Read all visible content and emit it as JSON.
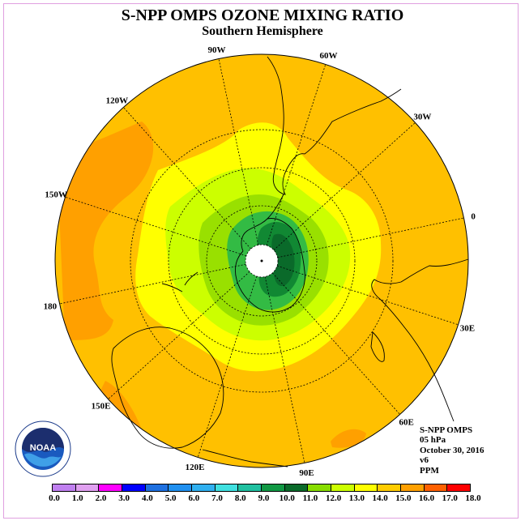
{
  "header": {
    "title": "S-NPP OMPS OZONE MIXING RATIO",
    "subtitle": "Southern Hemisphere"
  },
  "map": {
    "longitude_labels": [
      "90W",
      "60W",
      "30W",
      "0",
      "30E",
      "60E",
      "90E",
      "120E",
      "150E",
      "180",
      "150W",
      "120W"
    ],
    "colors": {
      "outer_orange": "#ffc000",
      "dark_orange": "#ffa000",
      "yellow": "#ffff00",
      "yellow_green": "#ccff00",
      "light_green": "#99e000",
      "green": "#33bb44",
      "dark_green": "#118833",
      "dark_green2": "#0a6a2a"
    }
  },
  "info": {
    "satellite": "S-NPP OMPS",
    "level": "05 hPa",
    "date": "October 30, 2016",
    "version": "v6",
    "units": "PPM"
  },
  "colorbar": {
    "ticks": [
      "0.0",
      "1.0",
      "2.0",
      "3.0",
      "4.0",
      "5.0",
      "6.0",
      "7.0",
      "8.0",
      "9.0",
      "10.0",
      "11.0",
      "12.0",
      "13.0",
      "14.0",
      "15.0",
      "16.0",
      "17.0",
      "18.0"
    ],
    "colors": [
      "#c080f0",
      "#e0a0f0",
      "#ff00ff",
      "#0000ff",
      "#1e70e0",
      "#2090f0",
      "#30b0f0",
      "#40e0e0",
      "#20c0a0",
      "#119944",
      "#0a6a2a",
      "#88dd00",
      "#ccff00",
      "#ffff00",
      "#ffcc00",
      "#ffa000",
      "#ff6000",
      "#ff0000",
      "#8b5a3c"
    ]
  },
  "logo": {
    "text": "NOAA",
    "ring_text": "NATIONAL OCEANIC AND ATMOSPHERIC ADMINISTRATION · U.S. DEPARTMENT OF COMMERCE"
  }
}
